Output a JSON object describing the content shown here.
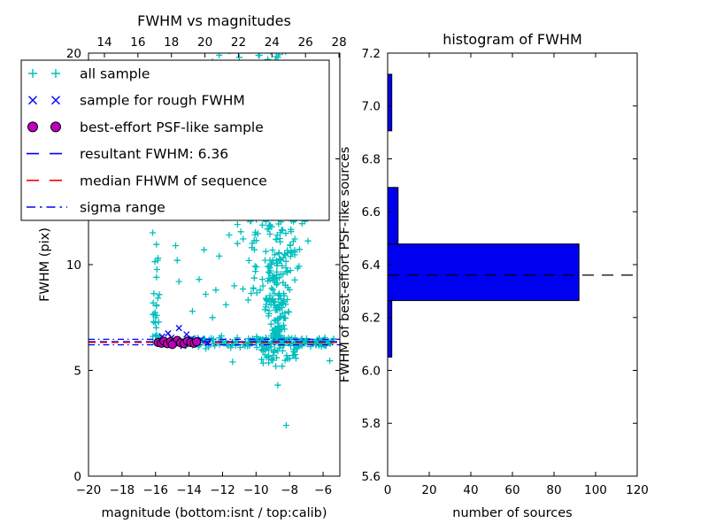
{
  "colors": {
    "background": "#ffffff",
    "axis": "#000000",
    "all_sample": "#00bfbf",
    "rough_sample": "#0000ff",
    "psf_sample": "#bf00bf",
    "psf_sample_edge": "#000000",
    "resultant_line": "#0000ff",
    "median_line": "#ff0000",
    "sigma_line": "#0000ff",
    "hist_bar": "#0000f0",
    "hist_bar_edge": "#000000",
    "hist_median_dash": "#000000"
  },
  "rng_seed": 7,
  "chart_data": [
    {
      "type": "scatter",
      "title": "FWHM vs magnitudes",
      "xlabel": "magnitude (bottom:isnt / top:calib)",
      "ylabel": "FWHM (pix)",
      "xlim": [
        -20,
        -5
      ],
      "ylim": [
        0,
        20
      ],
      "top_xlim": [
        13.05,
        28.05
      ],
      "xticks": [
        -20,
        -18,
        -16,
        -14,
        -12,
        -10,
        -8,
        -6
      ],
      "top_xticks": [
        14,
        16,
        18,
        20,
        22,
        24,
        26,
        28
      ],
      "yticks": [
        0,
        5,
        10,
        15,
        20
      ],
      "grid": false,
      "legend_position": "upper left",
      "resultant_fwhm": 6.36,
      "hlines": [
        {
          "name": "sigma-upper",
          "y": 6.47,
          "color": "#0000ff",
          "style": "dashdot"
        },
        {
          "name": "sigma-lower",
          "y": 6.21,
          "color": "#0000ff",
          "style": "dashdot"
        },
        {
          "name": "resultant-fwhm",
          "y": 6.36,
          "color": "#0000ff",
          "style": "dashed"
        },
        {
          "name": "median-fhwm",
          "y": 6.32,
          "color": "#ff0000",
          "style": "dashed"
        }
      ],
      "legend": [
        {
          "label": "all sample",
          "type": "plus",
          "color": "#00bfbf"
        },
        {
          "label": "sample for rough FWHM",
          "type": "x",
          "color": "#0000ff"
        },
        {
          "label": "best-effort PSF-like sample",
          "type": "circle",
          "color": "#bf00bf"
        },
        {
          "label": "resultant FWHM: 6.36",
          "type": "dashed",
          "color": "#0000ff"
        },
        {
          "label": "median FHWM of sequence",
          "type": "dashed",
          "color": "#ff0000"
        },
        {
          "label": "sigma range",
          "type": "dashdot",
          "color": "#0000ff"
        }
      ],
      "series": [
        {
          "name": "all sample",
          "marker": "plus",
          "color": "#00bfbf",
          "points": [
            [
              -13.4,
              9.3
            ],
            [
              -13.0,
              8.6
            ],
            [
              -12.6,
              7.5
            ],
            [
              -12.2,
              10.4
            ],
            [
              -11.8,
              8.1
            ],
            [
              -13.8,
              7.8
            ],
            [
              -12.0,
              12.2
            ],
            [
              -11.3,
              9.0
            ],
            [
              -12.4,
              8.8
            ],
            [
              -11.6,
              11.4
            ],
            [
              -13.1,
              10.7
            ],
            [
              -14.8,
              10.9
            ],
            [
              -14.7,
              10.2
            ],
            [
              -14.6,
              9.2
            ],
            [
              -8.7,
              4.3
            ],
            [
              -8.2,
              2.4
            ],
            [
              -5.6,
              5.45
            ],
            [
              -11.4,
              5.4
            ],
            [
              -12.2,
              19.9
            ],
            [
              -11.6,
              20.1
            ],
            [
              -11.0,
              19.8
            ],
            [
              -10.4,
              20.15
            ],
            [
              -9.8,
              19.9
            ],
            [
              -10.8,
              19.5
            ],
            [
              -9.3,
              19.7
            ],
            [
              -12.6,
              19.6
            ]
          ],
          "clusters": [
            {
              "kind": "funnel",
              "count": 200,
              "xc": -8.7,
              "base": 0.15,
              "slope": 0.14,
              "ymin": 6.35,
              "ymax": 12.5,
              "ypow": 2.0,
              "nclip": 2.2
            },
            {
              "kind": "vband",
              "count": 120,
              "xc": -8.8,
              "xsigma": 0.6,
              "ymin": 12.0,
              "ymax": 20.4,
              "ypow": 0.85,
              "nclip": 2.5
            },
            {
              "kind": "vband",
              "count": 55,
              "xc": -9.4,
              "xsigma": 0.95,
              "ymin": 8.0,
              "ymax": 12.2,
              "ypow": 1.0,
              "nclip": 1.8
            },
            {
              "kind": "hband",
              "count": 75,
              "xmin": -7.6,
              "xmax": -5.35,
              "yc": 6.32,
              "ysigma": 0.1
            },
            {
              "kind": "hband",
              "count": 105,
              "xmin": -13.6,
              "xmax": -7.6,
              "yc": 6.33,
              "ysigma": 0.13
            },
            {
              "kind": "hband",
              "count": 22,
              "xmin": -16.3,
              "xmax": -13.6,
              "yc": 6.35,
              "ysigma": 0.09
            },
            {
              "kind": "vband",
              "count": 26,
              "xc": -16.0,
              "xsigma": 0.12,
              "ymin": 6.6,
              "ymax": 12.3,
              "ypow": 1.5,
              "nclip": 2.0
            },
            {
              "kind": "hband",
              "count": 55,
              "xmin": -9.7,
              "xmax": -7.5,
              "yc": 5.95,
              "ysigma": 0.33
            }
          ]
        },
        {
          "name": "sample for rough FWHM",
          "marker": "x",
          "color": "#0000ff",
          "points": [
            [
              -15.6,
              6.6
            ],
            [
              -15.25,
              6.75
            ],
            [
              -14.6,
              7.0
            ],
            [
              -14.95,
              6.3
            ],
            [
              -14.35,
              6.15
            ],
            [
              -13.85,
              6.5
            ],
            [
              -13.55,
              6.35
            ],
            [
              -15.05,
              6.55
            ],
            [
              -14.15,
              6.7
            ],
            [
              -13.3,
              6.45
            ],
            [
              -12.9,
              6.3
            ]
          ]
        },
        {
          "name": "best-effort PSF-like sample",
          "marker": "circle",
          "color": "#bf00bf",
          "edge_color": "#000000",
          "points": [
            [
              -15.85,
              6.32
            ],
            [
              -15.65,
              6.28
            ],
            [
              -15.5,
              6.38
            ],
            [
              -15.3,
              6.26
            ],
            [
              -15.1,
              6.36
            ],
            [
              -14.9,
              6.3
            ],
            [
              -14.7,
              6.42
            ],
            [
              -14.5,
              6.3
            ],
            [
              -14.3,
              6.26
            ],
            [
              -14.1,
              6.38
            ],
            [
              -13.9,
              6.32
            ],
            [
              -13.7,
              6.28
            ],
            [
              -13.55,
              6.35
            ],
            [
              -15.0,
              6.22
            ]
          ]
        }
      ]
    },
    {
      "type": "histogram-horizontal",
      "title": "histogram of FWHM",
      "xlabel": "number of sources",
      "ylabel": "FWHM of best-effort PSF-like sources",
      "xlim": [
        0,
        120
      ],
      "ylim": [
        5.6,
        7.2
      ],
      "xticks": [
        0,
        20,
        40,
        60,
        80,
        100,
        120
      ],
      "yticks": [
        5.6,
        5.8,
        6.0,
        6.2,
        6.4,
        6.6,
        6.8,
        7.0,
        7.2
      ],
      "bin_edges": [
        6.05,
        6.264,
        6.478,
        6.692,
        6.906,
        7.12
      ],
      "counts": [
        2,
        92,
        5,
        0,
        2
      ],
      "bar_color": "#0000f0",
      "bar_edge_color": "#000000",
      "median_line": {
        "y": 6.36,
        "color": "#000000",
        "style": "dashed"
      }
    }
  ]
}
